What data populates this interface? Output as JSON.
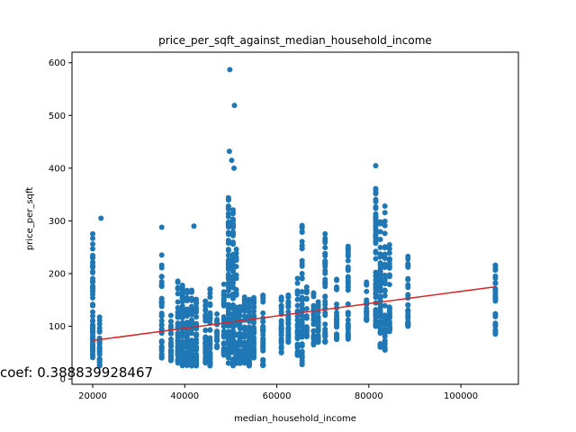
{
  "chart_data": {
    "type": "scatter",
    "title": "price_per_sqft_against_median_household_income",
    "xlabel": "median_household_income",
    "ylabel": "price_per_sqft",
    "xlim": [
      15500,
      112500
    ],
    "ylim": [
      -10,
      620
    ],
    "xticks": [
      20000,
      40000,
      60000,
      80000,
      100000
    ],
    "yticks": [
      0,
      100,
      200,
      300,
      400,
      500,
      600
    ],
    "grid": false,
    "annotation": "coef: 0.388839928467",
    "point_color": "#1f77b4",
    "line_color": "#d62728",
    "fit_line": {
      "x": [
        20000,
        107500
      ],
      "y": [
        73,
        175
      ]
    },
    "series": [
      {
        "values": [
          {
            "x": 20000,
            "min": 40,
            "max": 277,
            "n": 60
          },
          {
            "x": 21500,
            "min": 25,
            "max": 118,
            "n": 35
          },
          {
            "x": 21800,
            "y": 305
          },
          {
            "x": 35000,
            "min": 40,
            "max": 236,
            "n": 45
          },
          {
            "x": 35000,
            "y": 288
          },
          {
            "x": 37000,
            "min": 35,
            "max": 125,
            "n": 30
          },
          {
            "x": 38500,
            "min": 30,
            "max": 190,
            "n": 40
          },
          {
            "x": 39500,
            "min": 25,
            "max": 180,
            "n": 45
          },
          {
            "x": 40500,
            "min": 25,
            "max": 170,
            "n": 50
          },
          {
            "x": 41500,
            "min": 25,
            "max": 170,
            "n": 50
          },
          {
            "x": 42000,
            "y": 290
          },
          {
            "x": 42500,
            "min": 25,
            "max": 165,
            "n": 45
          },
          {
            "x": 44500,
            "min": 30,
            "max": 155,
            "n": 40
          },
          {
            "x": 45500,
            "min": 25,
            "max": 180,
            "n": 40
          },
          {
            "x": 47000,
            "min": 60,
            "max": 130,
            "n": 25
          },
          {
            "x": 48500,
            "min": 45,
            "max": 185,
            "n": 35
          },
          {
            "x": 49500,
            "min": 30,
            "max": 345,
            "n": 80
          },
          {
            "x": 49700,
            "y": 432
          },
          {
            "x": 49800,
            "y": 587
          },
          {
            "x": 50200,
            "y": 415
          },
          {
            "x": 50500,
            "min": 25,
            "max": 330,
            "n": 80
          },
          {
            "x": 50700,
            "y": 400
          },
          {
            "x": 50800,
            "y": 519
          },
          {
            "x": 51200,
            "min": 30,
            "max": 270,
            "n": 55
          },
          {
            "x": 52000,
            "min": 30,
            "max": 160,
            "n": 45
          },
          {
            "x": 53000,
            "min": 30,
            "max": 160,
            "n": 45
          },
          {
            "x": 54000,
            "min": 25,
            "max": 160,
            "n": 45
          },
          {
            "x": 55000,
            "min": 40,
            "max": 155,
            "n": 40
          },
          {
            "x": 57000,
            "min": 25,
            "max": 165,
            "n": 40
          },
          {
            "x": 61000,
            "min": 50,
            "max": 165,
            "n": 35
          },
          {
            "x": 62500,
            "min": 70,
            "max": 170,
            "n": 30
          },
          {
            "x": 64500,
            "min": 45,
            "max": 200,
            "n": 35
          },
          {
            "x": 65500,
            "min": 25,
            "max": 305,
            "n": 50
          },
          {
            "x": 66500,
            "min": 80,
            "max": 180,
            "n": 25
          },
          {
            "x": 68000,
            "min": 65,
            "max": 170,
            "n": 30
          },
          {
            "x": 69000,
            "min": 70,
            "max": 150,
            "n": 30
          },
          {
            "x": 70500,
            "min": 70,
            "max": 295,
            "n": 50
          },
          {
            "x": 73000,
            "min": 75,
            "max": 200,
            "n": 30
          },
          {
            "x": 75500,
            "min": 75,
            "max": 253,
            "n": 40
          },
          {
            "x": 79500,
            "min": 110,
            "max": 185,
            "n": 25
          },
          {
            "x": 81500,
            "min": 100,
            "max": 405,
            "n": 60
          },
          {
            "x": 82500,
            "min": 60,
            "max": 300,
            "n": 50
          },
          {
            "x": 83500,
            "min": 55,
            "max": 335,
            "n": 45
          },
          {
            "x": 84500,
            "min": 90,
            "max": 260,
            "n": 40
          },
          {
            "x": 88500,
            "min": 100,
            "max": 240,
            "n": 35
          },
          {
            "x": 107500,
            "min": 85,
            "max": 217,
            "n": 35
          }
        ]
      }
    ]
  }
}
